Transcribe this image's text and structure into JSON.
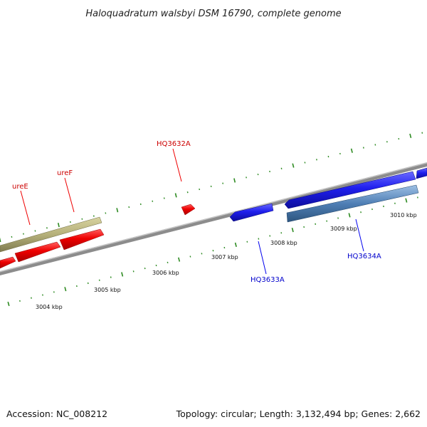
{
  "title": "Haloquadratum walsbyi DSM 16790, complete genome",
  "footer": {
    "accession": "Accession: NC_008212",
    "summary": "Topology: circular; Length: 3,132,494 bp; Genes: 2,662"
  },
  "colors": {
    "backbone": "#8c8c8c",
    "tick_dots": "#2e8b22",
    "gene_red": "#ee0000",
    "gene_olive": "#b5b07a",
    "gene_blue": "#1f1fee",
    "gene_steel": "#4f7fb5",
    "label_red": "#cc0000",
    "label_blue": "#0000cc"
  },
  "ruler": {
    "labels": [
      "3004 kbp",
      "3005 kbp",
      "3006 kbp",
      "3007 kbp",
      "3008 kbp",
      "3009 kbp",
      "3010 kbp"
    ]
  },
  "gene_labels": {
    "uree": "ureE",
    "uref": "ureF",
    "hq3632a": "HQ3632A",
    "hq3633a": "HQ3633A",
    "hq3634a": "HQ3634A"
  }
}
